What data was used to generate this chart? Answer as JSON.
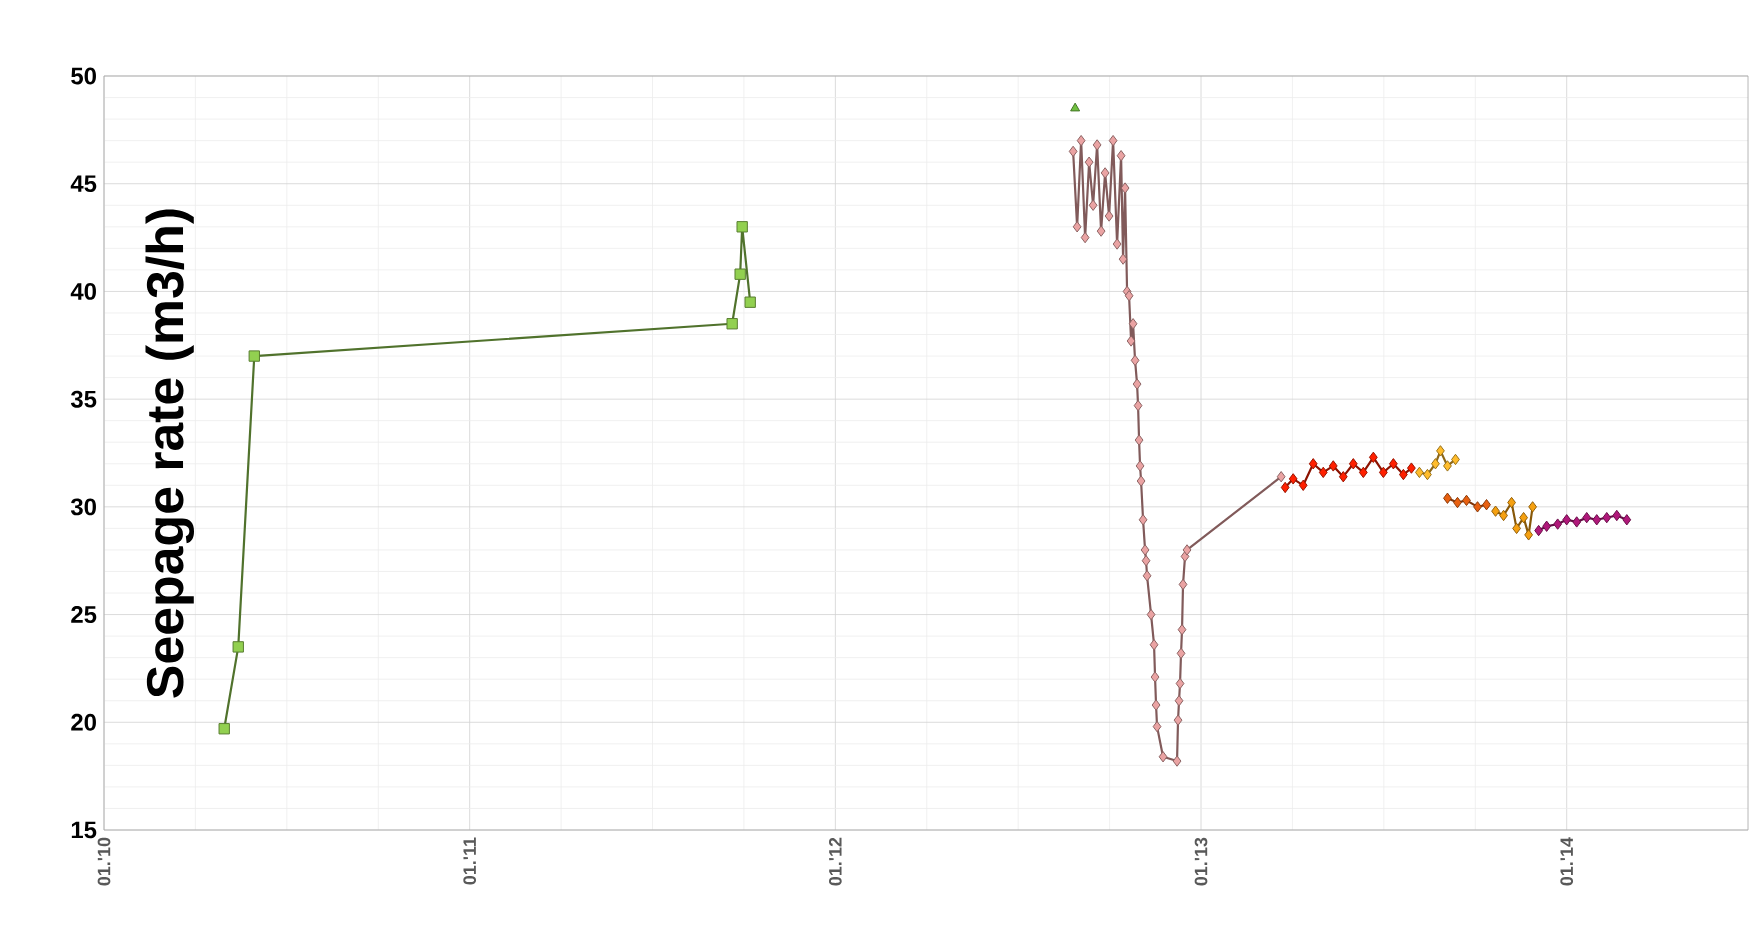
{
  "chart_data": {
    "type": "line",
    "ylabel": "Seepage rate (m3/h)",
    "xlim": [
      "2010-01-01",
      "2014-07-01"
    ],
    "ylim": [
      15,
      50
    ],
    "xticks": [
      {
        "value": "2010-01-01",
        "label": "01.'10"
      },
      {
        "value": "2011-01-01",
        "label": "01.'11"
      },
      {
        "value": "2012-01-01",
        "label": "01.'12"
      },
      {
        "value": "2013-01-01",
        "label": "01.'13"
      },
      {
        "value": "2014-01-01",
        "label": "01.'14"
      }
    ],
    "yticks": [
      15,
      20,
      25,
      30,
      35,
      40,
      45,
      50
    ],
    "grid": true,
    "line_style": "solid",
    "series": [
      {
        "color": "#92d050",
        "marker": "square",
        "x": [
          "2010-05-01",
          "2010-05-15",
          "2010-05-31",
          "2011-09-20",
          "2011-09-28",
          "2011-09-30",
          "2011-10-08"
        ],
        "values": [
          19.7,
          23.5,
          37.0,
          38.5,
          40.8,
          43.0,
          39.5
        ]
      },
      {
        "type": "scatter",
        "color": "#70c040",
        "marker": "triangle",
        "x": [
          "2012-08-28"
        ],
        "values": [
          48.5
        ]
      },
      {
        "color": "#eaa3a3",
        "marker": "diamond",
        "x": [
          "2012-08-26",
          "2012-08-30",
          "2012-09-03",
          "2012-09-07",
          "2012-09-11",
          "2012-09-15",
          "2012-09-19",
          "2012-09-23",
          "2012-09-27",
          "2012-10-01",
          "2012-10-05",
          "2012-10-09",
          "2012-10-13",
          "2012-10-15",
          "2012-10-17",
          "2012-10-19",
          "2012-10-21",
          "2012-10-23",
          "2012-10-25",
          "2012-10-27",
          "2012-10-29",
          "2012-10-30",
          "2012-10-31",
          "2012-11-01",
          "2012-11-02",
          "2012-11-04",
          "2012-11-06",
          "2012-11-07",
          "2012-11-08",
          "2012-11-12",
          "2012-11-15",
          "2012-11-16",
          "2012-11-17",
          "2012-11-18",
          "2012-11-24",
          "2012-12-08",
          "2012-12-09",
          "2012-12-10",
          "2012-12-11",
          "2012-12-12",
          "2012-12-13",
          "2012-12-14",
          "2012-12-16",
          "2012-12-18",
          "2013-03-22"
        ],
        "values": [
          46.5,
          43.0,
          47.0,
          42.5,
          46.0,
          44.0,
          46.8,
          42.8,
          45.5,
          43.5,
          47.0,
          42.2,
          46.3,
          41.5,
          44.8,
          40.0,
          39.8,
          37.7,
          38.5,
          36.8,
          35.7,
          34.7,
          33.1,
          31.9,
          31.2,
          29.4,
          28.0,
          27.5,
          26.8,
          25.0,
          23.6,
          22.1,
          20.8,
          19.8,
          18.4,
          18.2,
          20.1,
          21.0,
          21.8,
          23.2,
          24.3,
          26.4,
          27.7,
          28.0,
          31.4
        ]
      },
      {
        "color": "#ff2000",
        "marker": "diamond",
        "x": [
          "2013-03-26",
          "2013-04-03",
          "2013-04-13",
          "2013-04-23",
          "2013-05-03",
          "2013-05-13",
          "2013-05-23",
          "2013-06-02",
          "2013-06-12",
          "2013-06-22",
          "2013-07-02",
          "2013-07-12",
          "2013-07-22",
          "2013-07-30"
        ],
        "values": [
          30.9,
          31.3,
          31.0,
          32.0,
          31.6,
          31.9,
          31.4,
          32.0,
          31.6,
          32.3,
          31.6,
          32.0,
          31.5,
          31.8
        ]
      },
      {
        "color": "#ffbc2c",
        "marker": "diamond",
        "x": [
          "2013-08-07",
          "2013-08-15",
          "2013-08-23",
          "2013-08-28",
          "2013-09-04",
          "2013-09-12"
        ],
        "values": [
          31.6,
          31.5,
          32.0,
          32.6,
          31.9,
          32.2
        ]
      },
      {
        "color": "#e86010",
        "marker": "diamond",
        "x": [
          "2013-09-04",
          "2013-09-14",
          "2013-09-23",
          "2013-10-04",
          "2013-10-13"
        ],
        "values": [
          30.4,
          30.2,
          30.3,
          30.0,
          30.1
        ]
      },
      {
        "color": "#f5a010",
        "marker": "diamond",
        "x": [
          "2013-10-22",
          "2013-10-30",
          "2013-11-07",
          "2013-11-12",
          "2013-11-19",
          "2013-11-24",
          "2013-11-28"
        ],
        "values": [
          29.8,
          29.6,
          30.2,
          29.0,
          29.5,
          28.7,
          30.0
        ]
      },
      {
        "color": "#b0187a",
        "marker": "diamond",
        "x": [
          "2013-12-04",
          "2013-12-12",
          "2013-12-23",
          "2014-01-01",
          "2014-01-11",
          "2014-01-21",
          "2014-01-31",
          "2014-02-10",
          "2014-02-20",
          "2014-03-02"
        ],
        "values": [
          28.9,
          29.1,
          29.2,
          29.4,
          29.3,
          29.5,
          29.4,
          29.5,
          29.6,
          29.4
        ]
      }
    ]
  }
}
